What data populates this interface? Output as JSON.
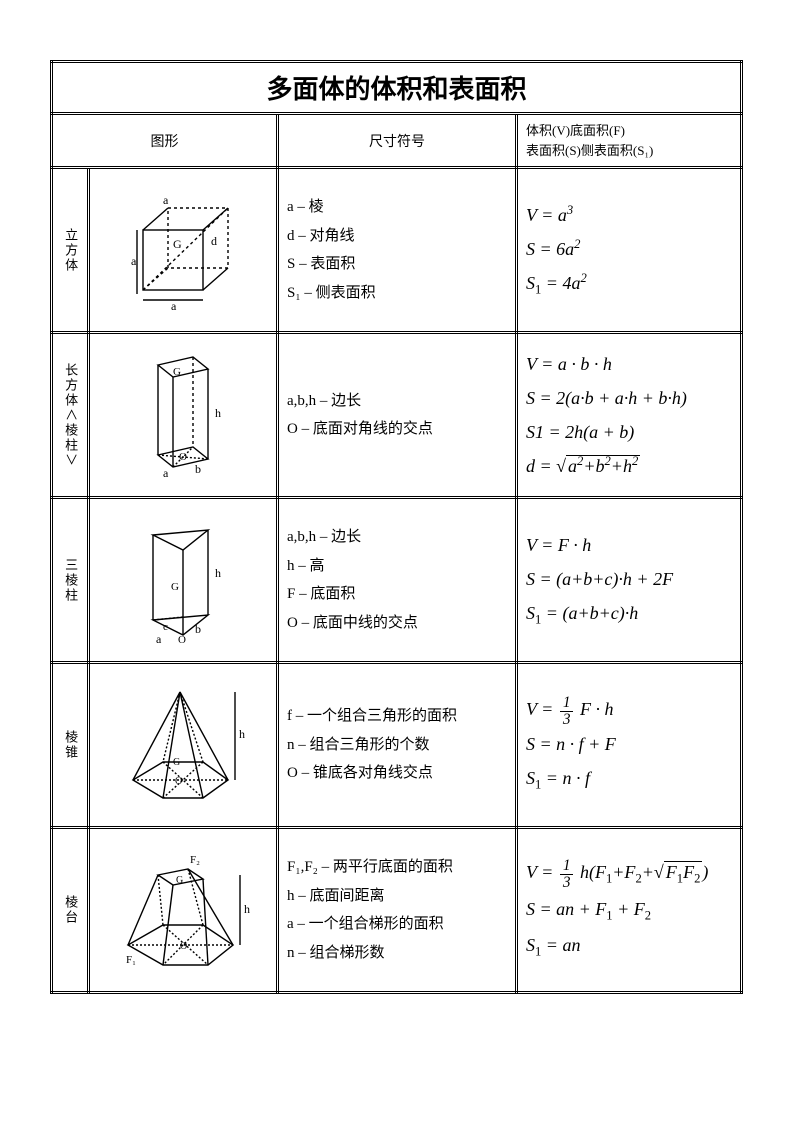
{
  "title": "多面体的体积和表面积",
  "headers": {
    "shape": "图形",
    "symbol": "尺寸符号",
    "formula_l1": "体积(V)底面积(F)",
    "formula_l2": "表面积(S)侧表面积(S₁)"
  },
  "rows": [
    {
      "name": "立方体",
      "symbols": [
        "a – 棱",
        "d – 对角线",
        "S – 表面积",
        "S₁ – 侧表面积"
      ],
      "formulas_html": "<div>V = a<sup>3</sup></div><div>S = 6a<sup>2</sup></div><div>S<sub>1</sub> = 4a<sup>2</sup></div>"
    },
    {
      "name": "长方体∧棱柱∨",
      "symbols": [
        "a,b,h – 边长",
        "O – 底面对角线的交点"
      ],
      "formulas_html": "<div>V = a · b · h</div><div>S = 2(a·b + a·h + b·h)</div><div>S1 = 2h(a + b)</div><div>d = <span class='rad'></span><span class='sqrt'>a<sup>2</sup>+b<sup>2</sup>+h<sup>2</sup></span></div>"
    },
    {
      "name": "三棱柱",
      "symbols": [
        "a,b,h – 边长",
        "h – 高",
        "F – 底面积",
        "O – 底面中线的交点"
      ],
      "formulas_html": "<div>V = F · h</div><div>S = (a+b+c)·h + 2F</div><div>S<sub>1</sub> = (a+b+c)·h</div>"
    },
    {
      "name": "棱锥",
      "symbols": [
        "f – 一个组合三角形的面积",
        "n – 组合三角形的个数",
        "O – 锥底各对角线交点"
      ],
      "formulas_html": "<div>V = <span class='frac'><span class='n'>1</span><span class='d'>3</span></span> F · h</div><div>S = n · f + F</div><div>S<sub>1</sub> = n · f</div>"
    },
    {
      "name": "棱台",
      "symbols": [
        "F₁,F₂ – 两平行底面的面积",
        "h – 底面间距离",
        "a – 一个组合梯形的面积",
        "n – 组合梯形数"
      ],
      "formulas_html": "<div>V = <span class='frac'><span class='n'>1</span><span class='d'>3</span></span> h(F<sub>1</sub>+F<sub>2</sub>+<span class='rad'></span><span class='sqrt'>F<sub>1</sub>F<sub>2</sub></span>)</div><div>S = an + F<sub>1</sub> + F<sub>2</sub></div><div>S<sub>1</sub> = an</div>"
    }
  ],
  "style": {
    "page_bg": "#ffffff",
    "border_color": "#000000",
    "title_fontsize": 26,
    "body_fontsize": 15,
    "formula_fontsize": 18
  }
}
